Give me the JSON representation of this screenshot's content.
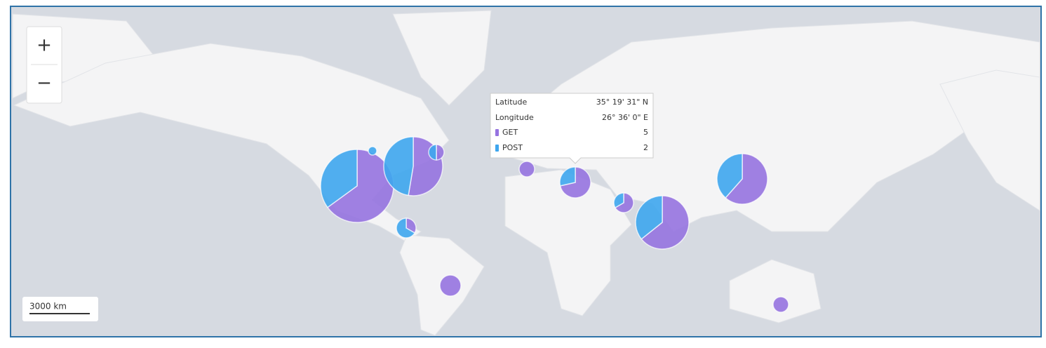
{
  "zoom": {
    "in": "+",
    "out": "−"
  },
  "scale": "3000 km",
  "tooltip": {
    "latitude": {
      "label": "Latitude",
      "value": "35° 19' 31\" N"
    },
    "longitude": {
      "label": "Longitude",
      "value": "26° 36' 0\" E"
    },
    "series": [
      {
        "name": "GET",
        "value": 5,
        "color": "#9673e0"
      },
      {
        "name": "POST",
        "value": 2,
        "color": "#3ea6ee"
      }
    ]
  },
  "markers": [
    {
      "GET": 13,
      "POST": 7
    },
    {
      "GET": 10,
      "POST": 9
    },
    {
      "GET": 1,
      "POST": 1
    },
    {
      "GET": 0,
      "POST": 1
    },
    {
      "GET": 1,
      "POST": 2
    },
    {
      "GET": 1,
      "POST": 0
    },
    {
      "GET": 5,
      "POST": 2
    },
    {
      "GET": 2,
      "POST": 1
    },
    {
      "GET": 9,
      "POST": 5
    },
    {
      "GET": 8,
      "POST": 5
    },
    {
      "GET": 2,
      "POST": 0
    },
    {
      "GET": 1,
      "POST": 0
    }
  ]
}
